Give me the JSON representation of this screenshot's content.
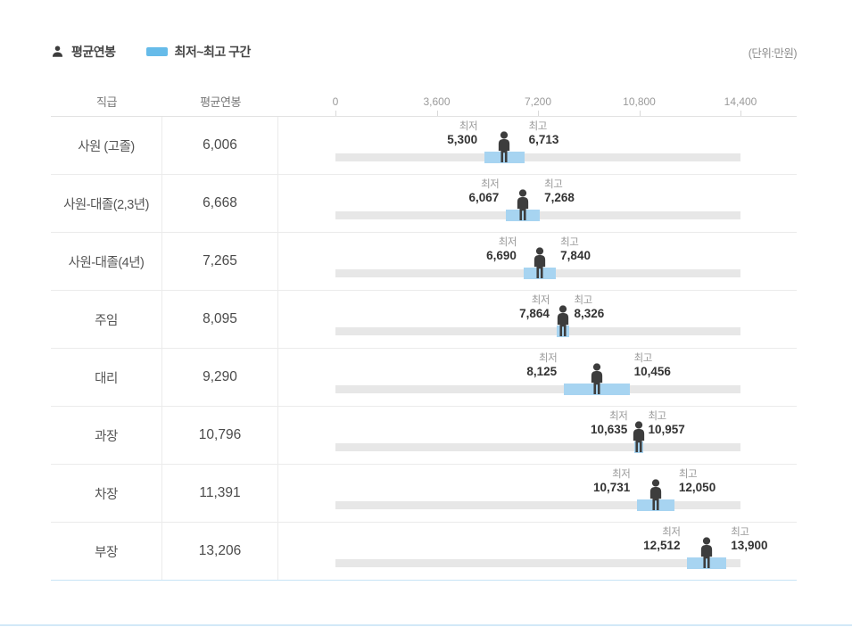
{
  "header": {
    "legend_avg_label": "평균연봉",
    "legend_range_label": "최저~최고 구간",
    "unit_note": "(단위:만원)"
  },
  "table": {
    "col_position": "직급",
    "col_avg": "평균연봉",
    "min_caption": "최저",
    "max_caption": "최고"
  },
  "axis": {
    "ticks": [
      "0",
      "3,600",
      "7,200",
      "10,800",
      "14,400"
    ],
    "tick_values": [
      0,
      3600,
      7200,
      10800,
      14400
    ],
    "max": 14400
  },
  "rows": [
    {
      "position": "사원 (고졸)",
      "avg": 6006,
      "avg_text": "6,006",
      "min": 5300,
      "min_text": "5,300",
      "max": 6713,
      "max_text": "6,713"
    },
    {
      "position": "사원-대졸(2,3년)",
      "avg": 6668,
      "avg_text": "6,668",
      "min": 6067,
      "min_text": "6,067",
      "max": 7268,
      "max_text": "7,268"
    },
    {
      "position": "사원-대졸(4년)",
      "avg": 7265,
      "avg_text": "7,265",
      "min": 6690,
      "min_text": "6,690",
      "max": 7840,
      "max_text": "7,840"
    },
    {
      "position": "주임",
      "avg": 8095,
      "avg_text": "8,095",
      "min": 7864,
      "min_text": "7,864",
      "max": 8326,
      "max_text": "8,326"
    },
    {
      "position": "대리",
      "avg": 9290,
      "avg_text": "9,290",
      "min": 8125,
      "min_text": "8,125",
      "max": 10456,
      "max_text": "10,456"
    },
    {
      "position": "과장",
      "avg": 10796,
      "avg_text": "10,796",
      "min": 10635,
      "min_text": "10,635",
      "max": 10957,
      "max_text": "10,957"
    },
    {
      "position": "차장",
      "avg": 11391,
      "avg_text": "11,391",
      "min": 10731,
      "min_text": "10,731",
      "max": 12050,
      "max_text": "12,050"
    },
    {
      "position": "부장",
      "avg": 13206,
      "avg_text": "13,206",
      "min": 12512,
      "min_text": "12,512",
      "max": 13900,
      "max_text": "13,900"
    }
  ],
  "colors": {
    "range_fill": "#a7d4f1",
    "legend_swatch": "#66bbe9",
    "track": "#e7e7e7",
    "icon": "#3d3d3d"
  },
  "chart_data": {
    "type": "bar",
    "subtype": "horizontal-range-bar-with-average-marker",
    "categories": [
      "사원 (고졸)",
      "사원-대졸(2,3년)",
      "사원-대졸(4년)",
      "주임",
      "대리",
      "과장",
      "차장",
      "부장"
    ],
    "series": [
      {
        "name": "평균연봉",
        "values": [
          6006,
          6668,
          7265,
          8095,
          9290,
          10796,
          11391,
          13206
        ]
      },
      {
        "name": "최저",
        "values": [
          5300,
          6067,
          6690,
          7864,
          8125,
          10635,
          10731,
          12512
        ]
      },
      {
        "name": "최고",
        "values": [
          6713,
          7268,
          7840,
          8326,
          10456,
          10957,
          12050,
          13900
        ]
      }
    ],
    "legend": [
      "평균연봉",
      "최저~최고 구간"
    ],
    "unit": "(단위:만원)",
    "xlabel": "",
    "ylabel": "직급",
    "xlim": [
      0,
      14400
    ],
    "x_ticks": [
      0,
      3600,
      7200,
      10800,
      14400
    ],
    "grid": false,
    "legend_position": "top-left"
  }
}
